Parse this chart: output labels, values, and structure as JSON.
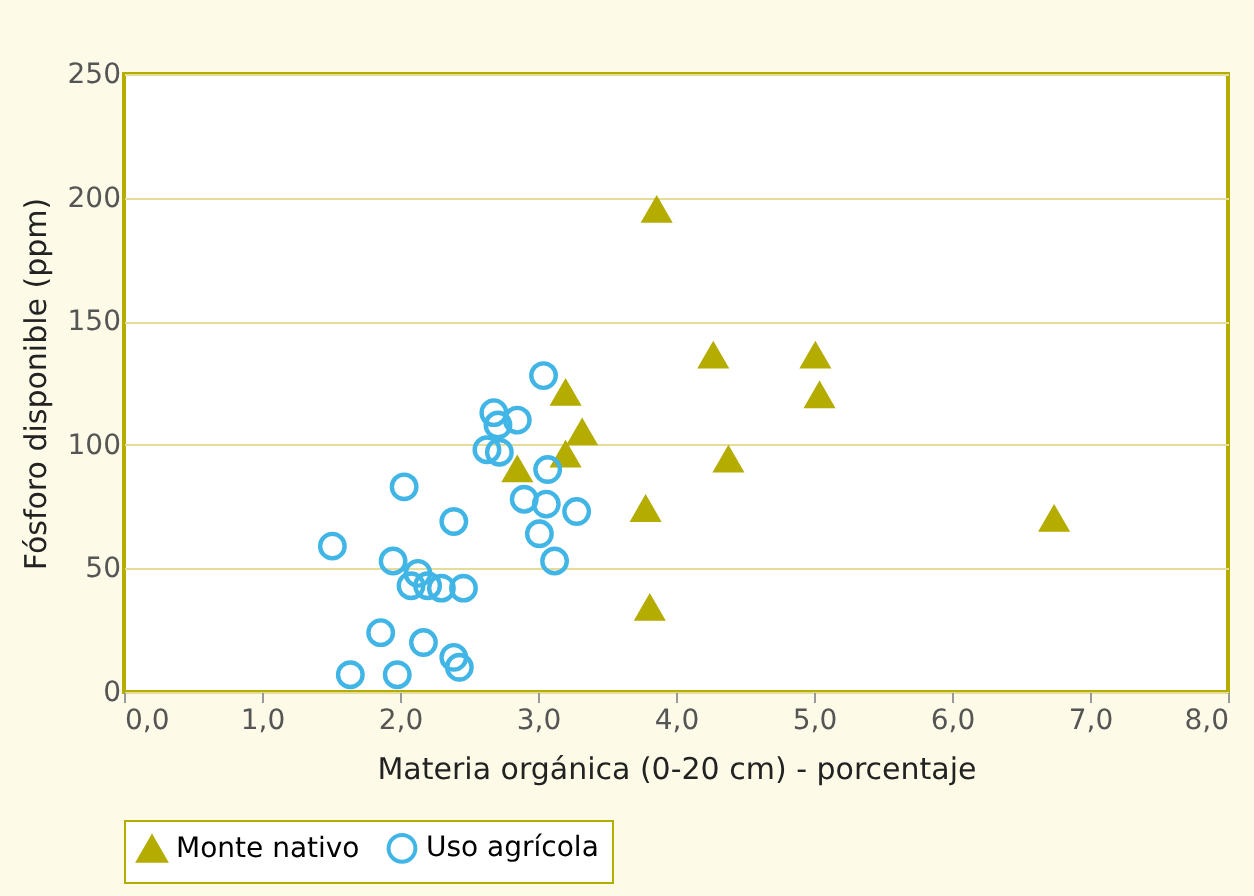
{
  "chart_data": {
    "type": "scatter",
    "xlabel": "Materia orgánica (0-20 cm) - porcentaje",
    "ylabel": "Fósforo disponible (ppm)",
    "xlim": [
      0,
      8
    ],
    "xticks": [
      {
        "value": 0,
        "label": "0,0"
      },
      {
        "value": 1,
        "label": "1,0"
      },
      {
        "value": 2,
        "label": "2,0"
      },
      {
        "value": 3,
        "label": "3,0"
      },
      {
        "value": 4,
        "label": "4,0"
      },
      {
        "value": 5,
        "label": "5,0"
      },
      {
        "value": 6,
        "label": "6,0"
      },
      {
        "value": 7,
        "label": "7,0"
      },
      {
        "value": 8,
        "label": "8,0"
      }
    ],
    "ylim": [
      0,
      250
    ],
    "yticks": [
      0,
      50,
      100,
      150,
      200,
      250
    ],
    "grid": "y",
    "legend": "bottom",
    "series": [
      {
        "name": "Monte nativo",
        "color": "#b5ac00",
        "marker": "triangle",
        "x": [
          3.86,
          4.27,
          5.01,
          5.04,
          4.38,
          6.74,
          3.78,
          3.81,
          3.2,
          3.32,
          3.2,
          2.85
        ],
        "values": [
          195,
          136,
          136,
          120,
          94,
          70,
          74,
          34,
          121,
          105,
          96,
          90
        ]
      },
      {
        "name": "Uso agrícola",
        "color": "#41b6e6",
        "marker": "circle",
        "x": [
          3.04,
          2.68,
          2.71,
          2.85,
          2.63,
          2.72,
          2.03,
          3.07,
          2.9,
          3.06,
          3.28,
          2.39,
          3.01,
          3.12,
          1.51,
          1.95,
          2.13,
          2.08,
          2.2,
          2.3,
          2.46,
          1.86,
          2.17,
          2.39,
          2.43,
          1.64,
          1.98
        ],
        "values": [
          128,
          113,
          108,
          110,
          98,
          97,
          83,
          90,
          78,
          76,
          73,
          69,
          64,
          53,
          59,
          53,
          48,
          43,
          43,
          42,
          42,
          24,
          20,
          14,
          10,
          7,
          7
        ]
      }
    ]
  }
}
